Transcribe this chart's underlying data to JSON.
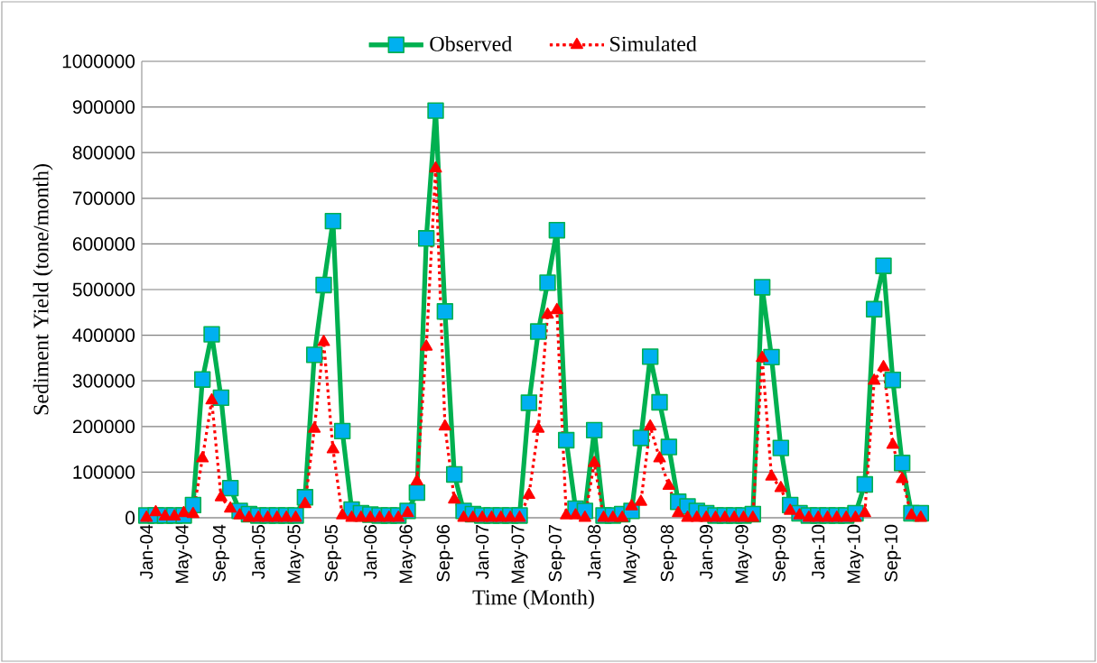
{
  "chart_data": {
    "type": "line",
    "xlabel": "Time (Month)",
    "ylabel": "Sediment Yield (tone/month)",
    "categories": [
      "Jan-04",
      null,
      null,
      null,
      "May-04",
      null,
      null,
      null,
      "Sep-04",
      null,
      null,
      null,
      "Jan-05",
      null,
      null,
      null,
      "May-05",
      null,
      null,
      null,
      "Sep-05",
      null,
      null,
      null,
      "Jan-06",
      null,
      null,
      null,
      "May-06",
      null,
      null,
      null,
      "Sep-06",
      null,
      null,
      null,
      "Jan-07",
      null,
      null,
      null,
      "May-07",
      null,
      null,
      null,
      "Sep-07",
      null,
      null,
      null,
      "Jan-08",
      null,
      null,
      null,
      "May-08",
      null,
      null,
      null,
      "Sep-08",
      null,
      null,
      null,
      "Jan-09",
      null,
      null,
      null,
      "May-09",
      null,
      null,
      null,
      "Sep-09",
      null,
      null,
      null,
      "Jan-10",
      null,
      null,
      null,
      "May-10",
      null,
      null,
      null,
      "Sep-10",
      null,
      null,
      null
    ],
    "series": [
      {
        "name": "Observed",
        "color": "#00b050",
        "marker": "square",
        "line_style": "solid",
        "values": [
          5000,
          5000,
          5000,
          5000,
          5000,
          28000,
          303000,
          402000,
          263000,
          65000,
          15000,
          8000,
          5000,
          5000,
          5000,
          5000,
          5000,
          45000,
          357000,
          510000,
          650000,
          190000,
          18000,
          10000,
          7000,
          5000,
          5000,
          5000,
          15000,
          55000,
          612000,
          892000,
          452000,
          95000,
          15000,
          8000,
          5000,
          5000,
          5000,
          5000,
          5000,
          252000,
          408000,
          515000,
          630000,
          170000,
          20000,
          15000,
          192000,
          5000,
          5000,
          8000,
          15000,
          175000,
          353000,
          253000,
          155000,
          35000,
          25000,
          15000,
          10000,
          5000,
          5000,
          5000,
          5000,
          8000,
          505000,
          352000,
          153000,
          28000,
          10000,
          5000,
          5000,
          5000,
          5000,
          5000,
          10000,
          73000,
          457000,
          552000,
          302000,
          120000,
          10000,
          10000
        ]
      },
      {
        "name": "Simulated",
        "color": "#ff0000",
        "marker": "triangle",
        "line_style": "dotted",
        "values": [
          0,
          12000,
          3000,
          3000,
          10000,
          8000,
          130000,
          257000,
          45000,
          20000,
          5000,
          0,
          0,
          0,
          0,
          0,
          0,
          30000,
          195000,
          385000,
          150000,
          5000,
          0,
          0,
          0,
          0,
          0,
          0,
          10000,
          80000,
          375000,
          765000,
          200000,
          40000,
          0,
          0,
          0,
          0,
          0,
          0,
          0,
          50000,
          195000,
          445000,
          455000,
          5000,
          5000,
          0,
          120000,
          0,
          0,
          0,
          25000,
          35000,
          200000,
          130000,
          70000,
          10000,
          0,
          0,
          0,
          0,
          0,
          0,
          0,
          0,
          350000,
          90000,
          65000,
          15000,
          5000,
          0,
          0,
          0,
          0,
          0,
          0,
          10000,
          300000,
          330000,
          160000,
          85000,
          5000,
          0
        ]
      }
    ],
    "ylim": [
      0,
      1000000
    ],
    "yticks": [
      0,
      100000,
      200000,
      300000,
      400000,
      500000,
      600000,
      700000,
      800000,
      900000,
      1000000
    ],
    "grid": "y",
    "legend": "top"
  }
}
